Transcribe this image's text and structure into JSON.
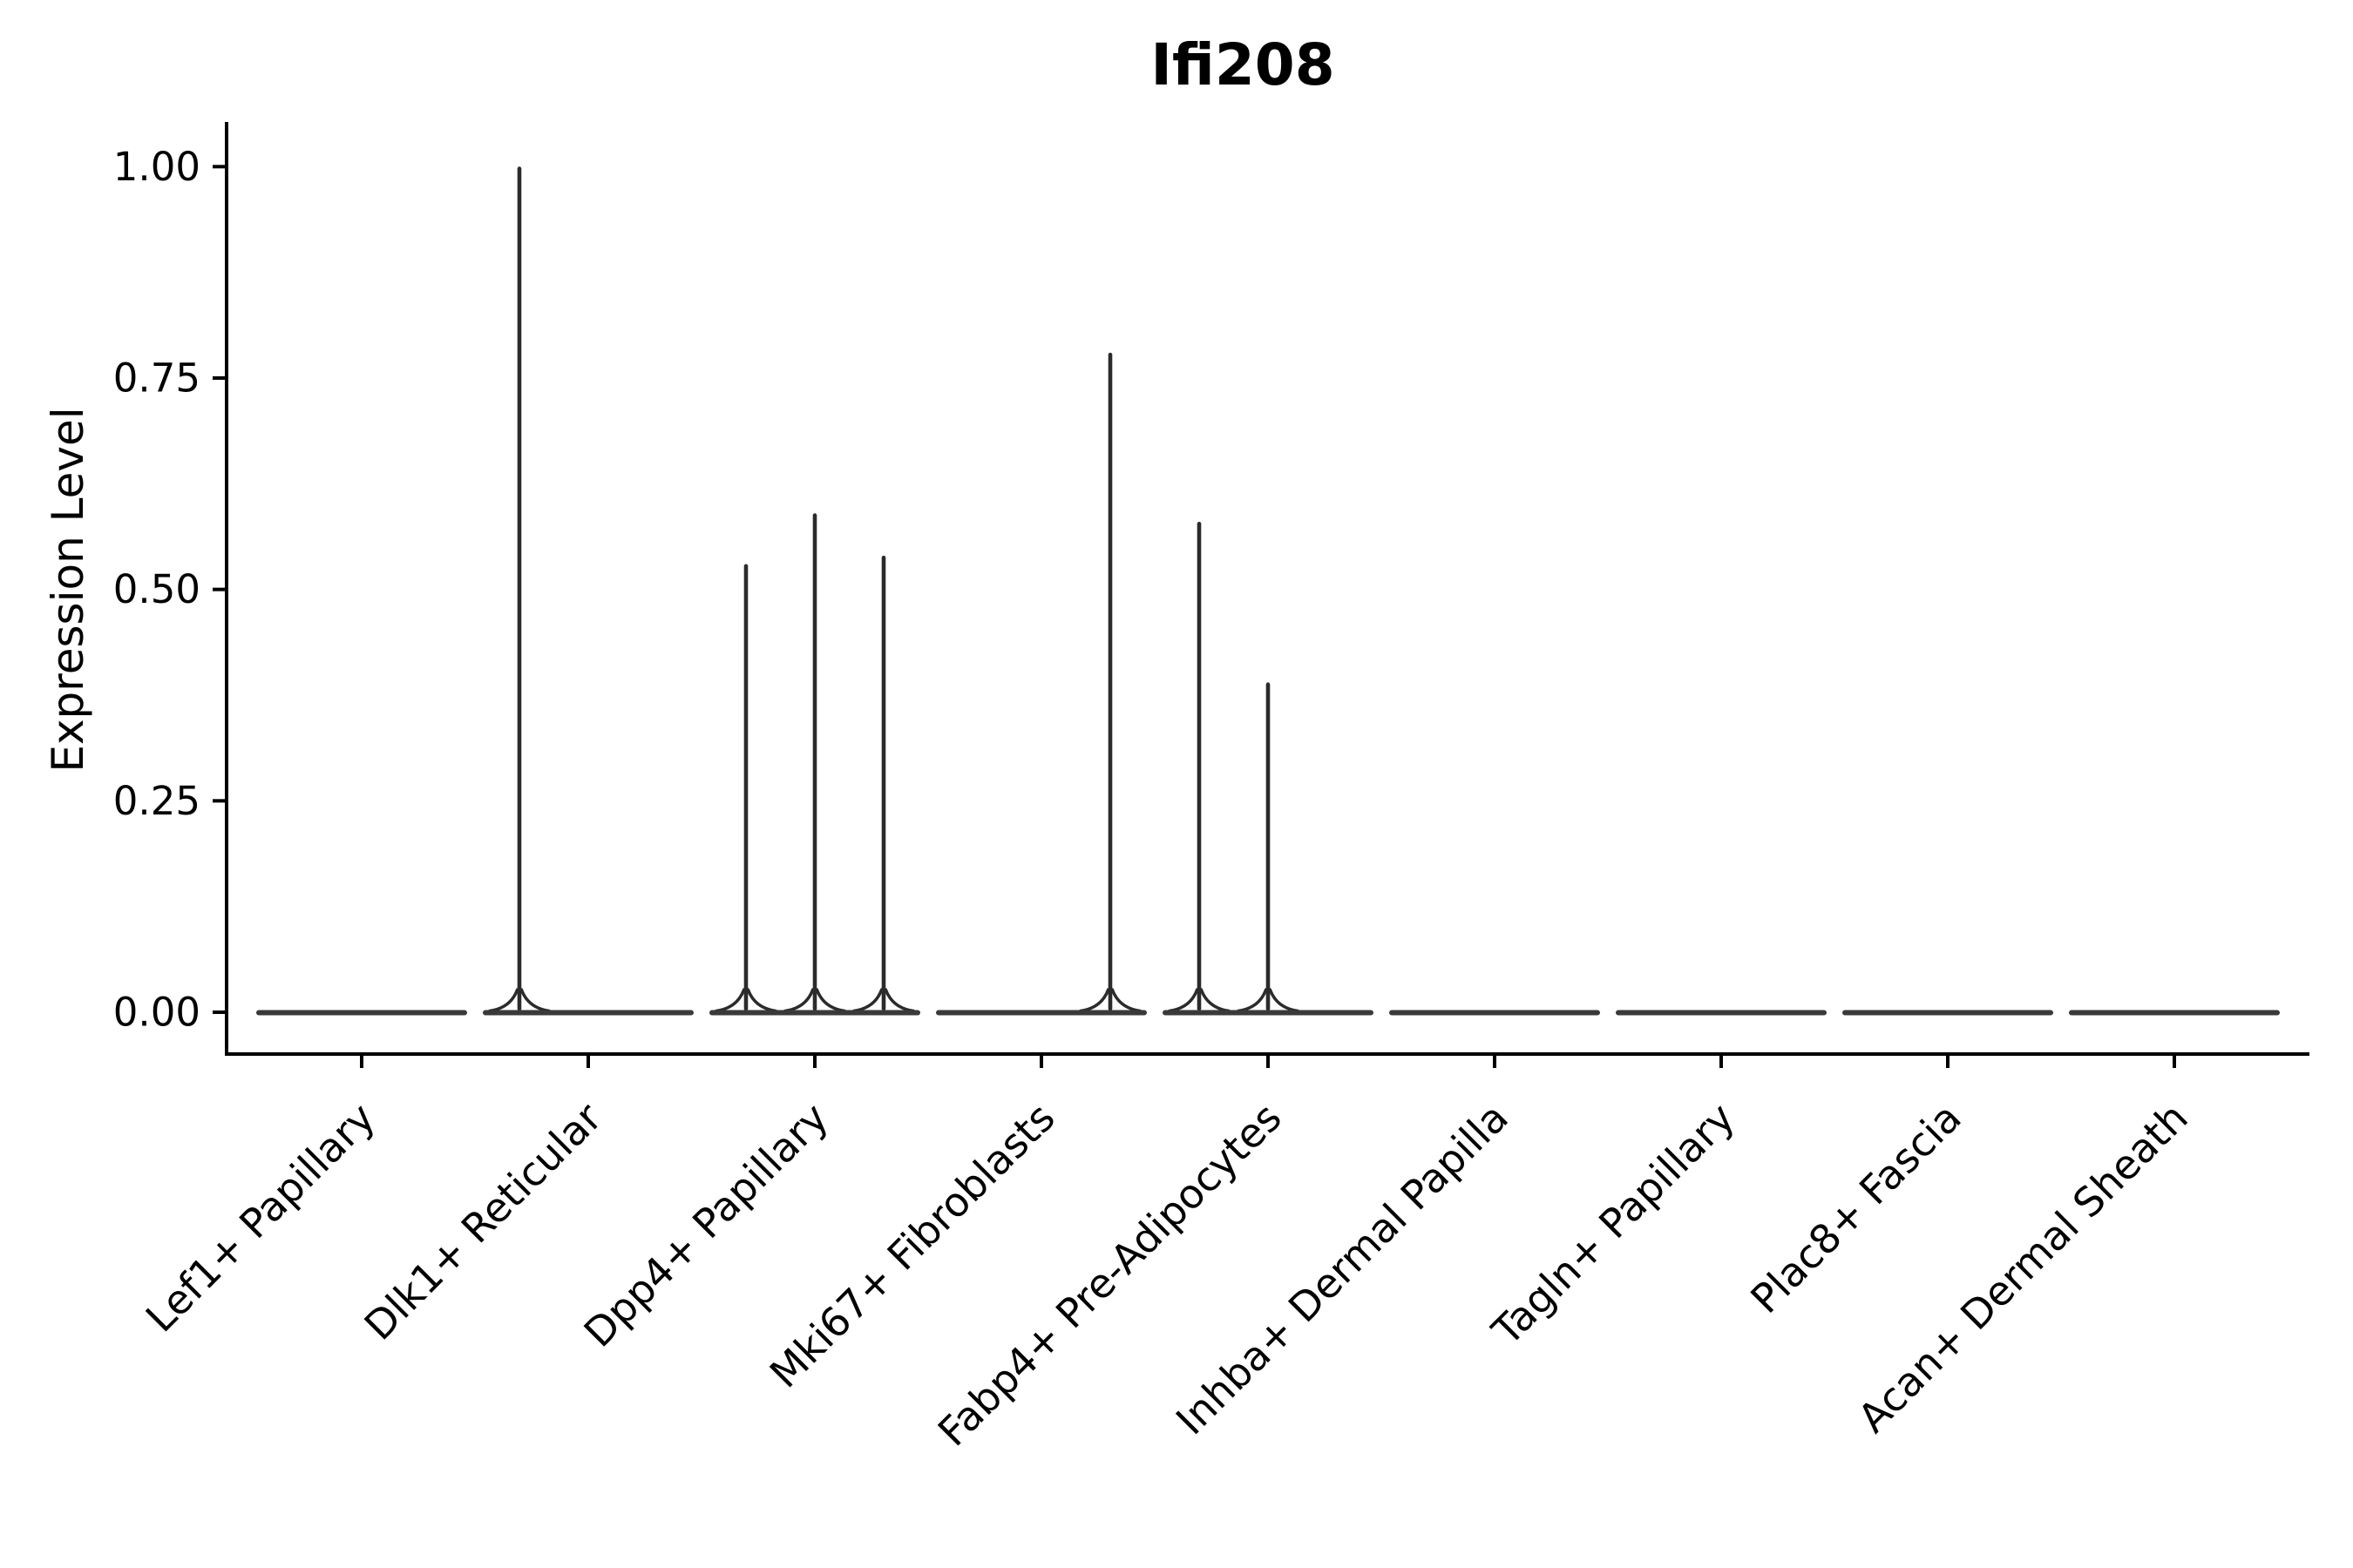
{
  "chart_data": {
    "type": "violin",
    "title": "Ifi208",
    "xlabel": "",
    "ylabel": "Expression Level",
    "ylim": [
      0,
      1.05
    ],
    "ytick_values": [
      0,
      0.25,
      0.5,
      0.75,
      1.0
    ],
    "ytick_labels": [
      "0.00",
      "0.25",
      "0.50",
      "0.75",
      "1.00"
    ],
    "grid": false,
    "legend_position": "none",
    "groups_per_category": 3,
    "categories": [
      "Lef1+ Papillary",
      "Dlk1+ Reticular",
      "Dpp4+ Papillary",
      "Mki67+ Fibroblasts",
      "Fabp4+ Pre-Adipocytes",
      "Inhba+ Dermal Papilla",
      "Tagln+ Papillary",
      "Plac8+ Fascia",
      "Acan+ Dermal Sheath"
    ],
    "violins": [
      {
        "category": "Lef1+ Papillary",
        "group_maxima": [
          0,
          0,
          0
        ]
      },
      {
        "category": "Dlk1+ Reticular",
        "group_maxima": [
          1.0,
          0,
          0
        ]
      },
      {
        "category": "Dpp4+ Papillary",
        "group_maxima": [
          0.53,
          0.59,
          0.54
        ]
      },
      {
        "category": "Mki67+ Fibroblasts",
        "group_maxima": [
          0,
          0,
          0.78
        ]
      },
      {
        "category": "Fabp4+ Pre-Adipocytes",
        "group_maxima": [
          0.58,
          0.39,
          0
        ]
      },
      {
        "category": "Inhba+ Dermal Papilla",
        "group_maxima": [
          0,
          0,
          0
        ]
      },
      {
        "category": "Tagln+ Papillary",
        "group_maxima": [
          0,
          0,
          0
        ]
      },
      {
        "category": "Plac8+ Fascia",
        "group_maxima": [
          0,
          0,
          0
        ]
      },
      {
        "category": "Acan+ Dermal Sheath",
        "group_maxima": [
          0,
          0,
          0
        ]
      }
    ],
    "colors": {
      "violin_baseline": "#3a3a3a",
      "violin_spike": "#2b2b2b",
      "axis": "#000000",
      "text": "#000000",
      "background": "#ffffff"
    }
  }
}
